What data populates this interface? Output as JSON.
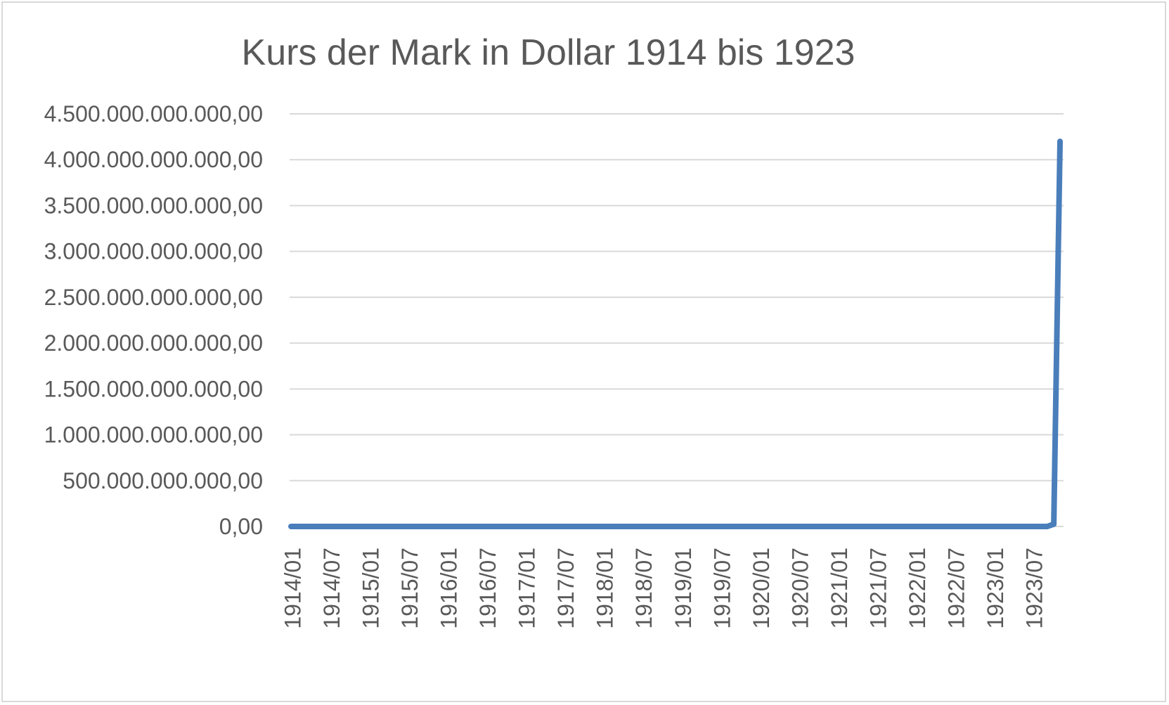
{
  "chart_data": {
    "type": "line",
    "title": "Kurs der Mark in Dollar 1914 bis 1923",
    "xlabel": "",
    "ylabel": "",
    "ylim": [
      0,
      4500000000000
    ],
    "y_ticks": [
      {
        "value": 0,
        "label": "0,00"
      },
      {
        "value": 500000000000,
        "label": "500.000.000.000,00"
      },
      {
        "value": 1000000000000,
        "label": "1.000.000.000.000,00"
      },
      {
        "value": 1500000000000,
        "label": "1.500.000.000.000,00"
      },
      {
        "value": 2000000000000,
        "label": "2.000.000.000.000,00"
      },
      {
        "value": 2500000000000,
        "label": "2.500.000.000.000,00"
      },
      {
        "value": 3000000000000,
        "label": "3.000.000.000.000,00"
      },
      {
        "value": 3500000000000,
        "label": "3.500.000.000.000,00"
      },
      {
        "value": 4000000000000,
        "label": "4.000.000.000.000,00"
      },
      {
        "value": 4500000000000,
        "label": "4.500.000.000.000,00"
      }
    ],
    "x_tick_labels": [
      "1914/01",
      "1914/07",
      "1915/01",
      "1915/07",
      "1916/01",
      "1916/07",
      "1917/01",
      "1917/07",
      "1918/01",
      "1918/07",
      "1919/01",
      "1919/07",
      "1920/01",
      "1920/07",
      "1921/01",
      "1921/07",
      "1922/01",
      "1922/07",
      "1923/01",
      "1923/07"
    ],
    "grid": true,
    "legend": "none",
    "colors": {
      "series": "#4a7ebb",
      "grid": "#d9d9d9",
      "text": "#595959",
      "border": "#d9d9d9"
    },
    "series": [
      {
        "x": [
          "1914/01",
          "1923/09",
          "1923/10",
          "1923/11"
        ],
        "values": [
          4.2,
          160000000,
          25260000000,
          4200000000000
        ]
      }
    ]
  }
}
